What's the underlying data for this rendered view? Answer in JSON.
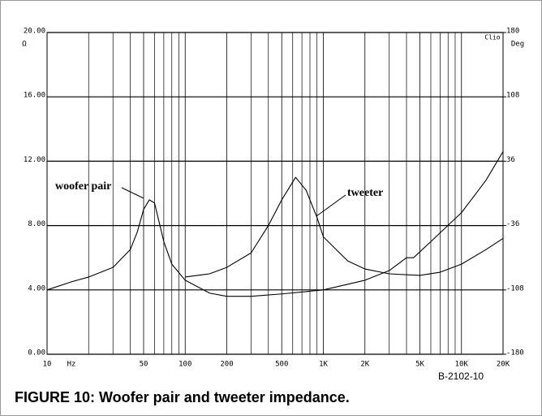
{
  "chart_data": {
    "type": "line",
    "caption": "FIGURE 10: Woofer pair and tweeter impedance.",
    "figure_code": "B-2102-10",
    "brand": "Clio",
    "y_unit": "Ω",
    "y2_unit": "Deg",
    "x_unit": "Hz",
    "log_x": true,
    "grid": true,
    "xlim": [
      10,
      20000
    ],
    "xticks": [
      10,
      50,
      100,
      200,
      500,
      {
        "value": 1000,
        "label": "1K"
      },
      {
        "value": 2000,
        "label": "2K"
      },
      {
        "value": 5000,
        "label": "5K"
      },
      {
        "value": 10000,
        "label": "10K"
      },
      {
        "value": 20000,
        "label": "20K"
      }
    ],
    "xminor_ticks": [
      20,
      30,
      40,
      60,
      70,
      80,
      90,
      300,
      400,
      600,
      700,
      800,
      900,
      3000,
      4000,
      6000,
      7000,
      8000,
      9000
    ],
    "ylim": [
      0,
      20
    ],
    "yticks": [
      {
        "value": 0,
        "label": "0.00"
      },
      {
        "value": 4,
        "label": "4.00"
      },
      {
        "value": 8,
        "label": "8.00"
      },
      {
        "value": 12,
        "label": "12.00"
      },
      {
        "value": 16,
        "label": "16.00"
      },
      {
        "value": 20,
        "label": "20.00"
      }
    ],
    "y2lim": [
      -180,
      180
    ],
    "y2ticks": [
      -180,
      -108,
      -36,
      36,
      108,
      180
    ],
    "series": [
      {
        "name": "woofer pair",
        "color": "#000000",
        "x": [
          10,
          15,
          20,
          30,
          40,
          45,
          50,
          55,
          60,
          70,
          80,
          100,
          150,
          200,
          300,
          500,
          1000,
          2000,
          3000,
          4000,
          4500,
          6000,
          10000,
          15000,
          20000
        ],
        "values": [
          4.0,
          4.5,
          4.8,
          5.4,
          6.5,
          7.6,
          9.0,
          9.6,
          9.4,
          7.0,
          5.6,
          4.6,
          3.8,
          3.6,
          3.6,
          3.75,
          4.0,
          4.6,
          5.2,
          6.0,
          6.0,
          7.0,
          8.8,
          10.8,
          12.6
        ]
      },
      {
        "name": "tweeter",
        "color": "#000000",
        "x": [
          100,
          150,
          200,
          300,
          400,
          500,
          630,
          750,
          900,
          1000,
          1500,
          2000,
          3000,
          5000,
          7000,
          10000,
          15000,
          20000
        ],
        "values": [
          4.8,
          5.0,
          5.4,
          6.3,
          8.0,
          9.6,
          11.0,
          10.2,
          8.5,
          7.3,
          5.8,
          5.3,
          5.0,
          4.9,
          5.1,
          5.6,
          6.5,
          7.2
        ]
      }
    ]
  }
}
